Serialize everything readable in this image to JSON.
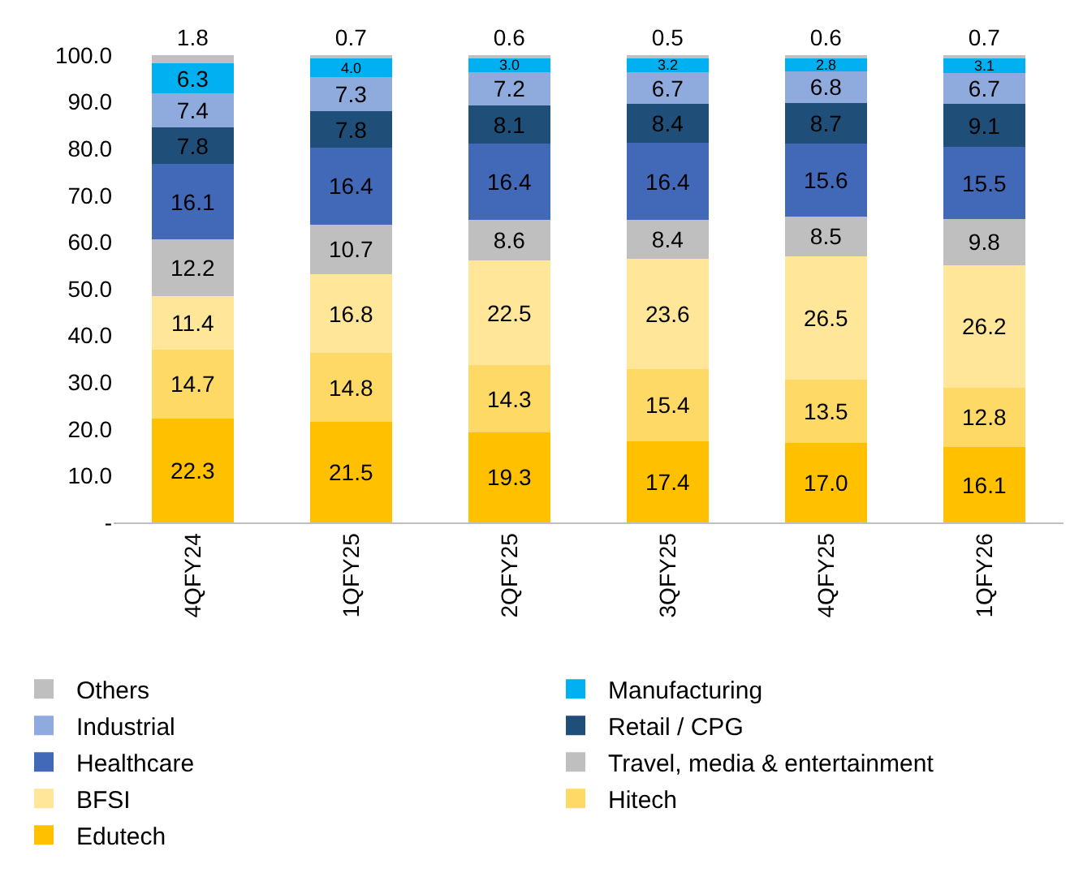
{
  "chart_data": {
    "type": "bar",
    "stacked": true,
    "categories": [
      "4QFY24",
      "1QFY25",
      "2QFY25",
      "3QFY25",
      "4QFY25",
      "1QFY26"
    ],
    "series": [
      {
        "name": "Edutech",
        "color": "#ffc000",
        "values": [
          22.3,
          21.5,
          19.3,
          17.4,
          17.0,
          16.1
        ],
        "value_labels": [
          "22.3",
          "21.5",
          "19.3",
          "17.4",
          "17.0",
          "16.1"
        ]
      },
      {
        "name": "Hitech",
        "color": "#ffd966",
        "values": [
          14.7,
          14.8,
          14.3,
          15.4,
          13.5,
          12.8
        ]
      },
      {
        "name": "BFSI",
        "color": "#ffe699",
        "values": [
          11.4,
          16.8,
          22.5,
          23.6,
          26.5,
          26.2
        ]
      },
      {
        "name": "Travel, media & entertainment",
        "color": "#bfbfbf",
        "values": [
          12.2,
          10.7,
          8.6,
          8.4,
          8.5,
          9.8
        ]
      },
      {
        "name": "Healthcare",
        "color": "#4169b8",
        "values": [
          16.1,
          16.4,
          16.4,
          16.4,
          15.6,
          15.5
        ]
      },
      {
        "name": "Retail / CPG",
        "color": "#1f4e79",
        "values": [
          7.8,
          7.8,
          8.1,
          8.4,
          8.7,
          9.1
        ]
      },
      {
        "name": "Industrial",
        "color": "#8faadc",
        "values": [
          7.4,
          7.3,
          7.2,
          6.7,
          6.8,
          6.7
        ]
      },
      {
        "name": "Manufacturing",
        "color": "#00b0f0",
        "values": [
          6.3,
          4.0,
          3.0,
          3.2,
          2.8,
          3.1
        ],
        "value_labels": [
          "6.3",
          "4.0",
          "3.0",
          "3.2",
          "2.8",
          "3.1"
        ]
      },
      {
        "name": "Others",
        "color": "#bfbfbf",
        "values": [
          1.8,
          0.7,
          0.6,
          0.5,
          0.6,
          0.7
        ]
      }
    ],
    "ylim": [
      0,
      100
    ],
    "yticks": [
      {
        "value": 0,
        "label": "-"
      },
      {
        "value": 10,
        "label": "10.0"
      },
      {
        "value": 20,
        "label": "20.0"
      },
      {
        "value": 30,
        "label": "30.0"
      },
      {
        "value": 40,
        "label": "40.0"
      },
      {
        "value": 50,
        "label": "50.0"
      },
      {
        "value": 60,
        "label": "60.0"
      },
      {
        "value": 70,
        "label": "70.0"
      },
      {
        "value": 80,
        "label": "80.0"
      },
      {
        "value": 90,
        "label": "90.0"
      },
      {
        "value": 100,
        "label": "100.0"
      }
    ],
    "data_labels": true,
    "legend": "bottom"
  }
}
